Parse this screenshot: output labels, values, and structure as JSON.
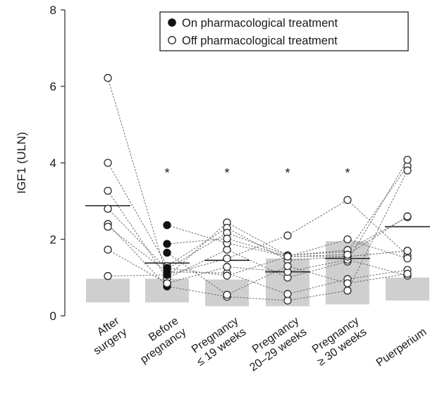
{
  "chart_data": {
    "type": "scatter",
    "ylabel": "IGF1 (ULN)",
    "ylim": [
      0,
      8
    ],
    "yticks": [
      "0",
      "2",
      "4",
      "6",
      "8"
    ],
    "categories": [
      [
        "After",
        "surgery"
      ],
      [
        "Before",
        "pregnancy"
      ],
      [
        "Pregnancy",
        "≤ 19 weeks"
      ],
      [
        "Pregnancy",
        "20–29 weeks"
      ],
      [
        "Pregnancy",
        "≥ 30 weeks"
      ],
      [
        "Puerperium"
      ]
    ],
    "legend": [
      {
        "label": "On pharmacological treatment",
        "marker": "filled"
      },
      {
        "label": "Off pharmacological treatment",
        "marker": "open"
      }
    ],
    "legend_position": "top-right",
    "significance": [
      "",
      "*",
      "*",
      "*",
      "*",
      ""
    ],
    "medians": [
      2.88,
      1.38,
      1.45,
      1.15,
      1.5,
      2.33
    ],
    "normal_range": [
      [
        0.35,
        0.97
      ],
      [
        0.35,
        0.97
      ],
      [
        0.25,
        0.95
      ],
      [
        0.25,
        1.5
      ],
      [
        0.3,
        1.95
      ],
      [
        0.4,
        1.0
      ]
    ],
    "patients": [
      [
        6.22,
        1.02,
        2.44,
        1.58,
        1.68,
        3.92
      ],
      [
        4.0,
        1.3,
        2.3,
        1.45,
        1.55,
        1.7
      ],
      [
        3.27,
        0.98,
        1.73,
        1.0,
        1.42,
        4.08
      ],
      [
        2.8,
        1.22,
        2.17,
        1.58,
        1.72,
        2.58
      ],
      [
        2.4,
        0.77,
        0.5,
        0.4,
        0.66,
        3.8
      ],
      [
        2.33,
        1.15,
        1.12,
        0.57,
        0.96,
        1.2
      ],
      [
        1.73,
        0.85,
        1.28,
        1.15,
        1.47,
        1.05
      ],
      [
        1.04,
        1.07,
        1.5,
        2.1,
        3.03,
        1.58
      ],
      [
        null,
        2.37,
        1.9,
        1.55,
        1.55,
        1.7
      ],
      [
        null,
        1.88,
        2.02,
        1.55,
        2.0,
        1.5
      ],
      [
        null,
        1.65,
        0.55,
        1.3,
        0.85,
        1.1
      ],
      [
        null,
        1.25,
        1.05,
        1.55,
        1.6,
        2.6
      ]
    ],
    "on_treatment": [
      [
        false,
        false,
        false,
        false,
        false,
        false
      ],
      [
        false,
        false,
        false,
        false,
        false,
        false
      ],
      [
        false,
        false,
        false,
        false,
        false,
        false
      ],
      [
        false,
        false,
        false,
        false,
        false,
        false
      ],
      [
        false,
        true,
        false,
        false,
        false,
        false
      ],
      [
        false,
        true,
        false,
        false,
        false,
        false
      ],
      [
        false,
        false,
        false,
        false,
        false,
        false
      ],
      [
        false,
        true,
        false,
        false,
        false,
        false
      ],
      [
        false,
        true,
        false,
        false,
        false,
        false
      ],
      [
        false,
        true,
        false,
        false,
        false,
        false
      ],
      [
        false,
        true,
        false,
        false,
        false,
        false
      ],
      [
        false,
        true,
        false,
        false,
        false,
        false
      ]
    ],
    "colors": {
      "bar": "#cfcfcf",
      "axis": "#444444",
      "line": "#6a6a6a",
      "median": "#222222",
      "marker_stroke": "#2a2a2a",
      "marker_open_fill": "#ffffff",
      "marker_filled": "#111111"
    }
  }
}
